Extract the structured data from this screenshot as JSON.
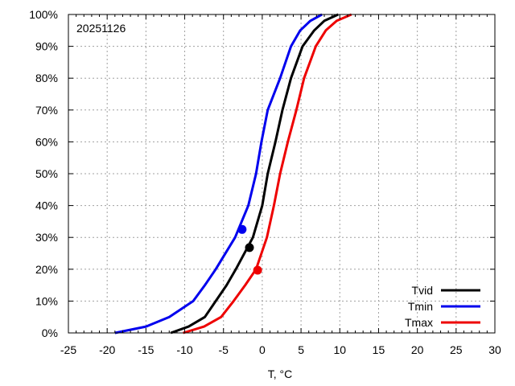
{
  "chart_data": {
    "type": "line",
    "title": "",
    "annotation": "20251126",
    "xlabel": "T, °C",
    "ylabel": "",
    "xlim": [
      -25,
      30
    ],
    "ylim": [
      0,
      100
    ],
    "xticks": [
      -25,
      -20,
      -15,
      -10,
      -5,
      0,
      5,
      10,
      15,
      20,
      25,
      30
    ],
    "yticks": [
      0,
      10,
      20,
      30,
      40,
      50,
      60,
      70,
      80,
      90,
      100
    ],
    "ytick_labels": [
      "0%",
      "10%",
      "20%",
      "30%",
      "40%",
      "50%",
      "60%",
      "70%",
      "80%",
      "90%",
      "100%"
    ],
    "xtick_labels": [
      "-25",
      "-20",
      "-15",
      "-10",
      "-5",
      "0",
      "5",
      "10",
      "15",
      "20",
      "25",
      "30"
    ],
    "grid": true,
    "legend_position": "bottom-right",
    "series": [
      {
        "name": "Tvid",
        "color": "#000000",
        "x": [
          -11.8,
          -9.5,
          -7.4,
          -6.0,
          -4.6,
          -3.4,
          -1.2,
          0.0,
          0.7,
          1.7,
          2.6,
          3.7,
          5.2,
          6.7,
          8.0,
          9.8
        ],
        "y": [
          0,
          2,
          5,
          10,
          15,
          20,
          30,
          40,
          50,
          60,
          70,
          80,
          90,
          95,
          98,
          100
        ],
        "marker": {
          "x": -1.65,
          "y": 26.8
        }
      },
      {
        "name": "Tmin",
        "color": "#0000ee",
        "x": [
          -19.0,
          -15.0,
          -12.0,
          -8.9,
          -7.4,
          -6.0,
          -3.5,
          -1.8,
          -0.8,
          -0.1,
          0.7,
          2.3,
          3.7,
          4.9,
          6.2,
          7.7
        ],
        "y": [
          0,
          2,
          5,
          10,
          15,
          20,
          30,
          40,
          50,
          60,
          70,
          80,
          90,
          95,
          98,
          100
        ],
        "marker": {
          "x": -2.6,
          "y": 32.5
        }
      },
      {
        "name": "Tmax",
        "color": "#ee0000",
        "x": [
          -10.2,
          -7.5,
          -5.3,
          -3.7,
          -2.2,
          -0.8,
          0.6,
          1.5,
          2.3,
          3.3,
          4.4,
          5.4,
          6.9,
          8.2,
          9.6,
          11.5
        ],
        "y": [
          0,
          2,
          5,
          10,
          15,
          20,
          30,
          40,
          50,
          60,
          70,
          80,
          90,
          95,
          98,
          100
        ],
        "marker": {
          "x": -0.6,
          "y": 19.7
        }
      }
    ]
  }
}
